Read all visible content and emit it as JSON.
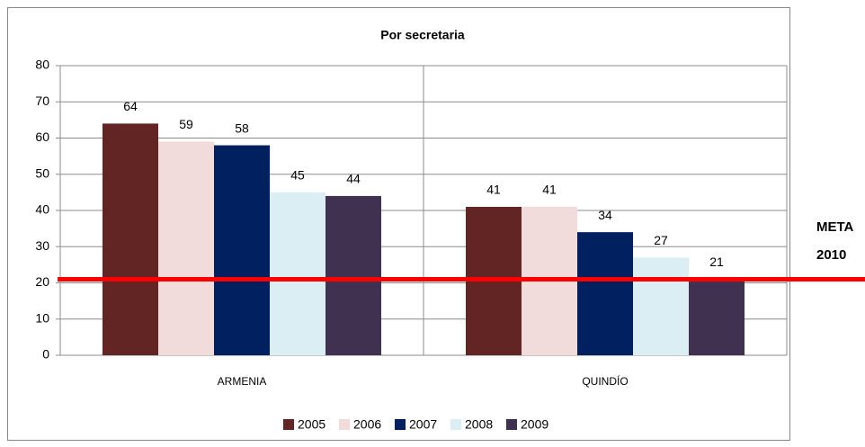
{
  "chart_data": {
    "type": "bar",
    "title": "Por secretaria",
    "categories": [
      "ARMENIA",
      "QUINDÍO"
    ],
    "series": [
      {
        "name": "2005",
        "color": "#632523",
        "values": [
          64,
          41
        ]
      },
      {
        "name": "2006",
        "color": "#f2dcdb",
        "values": [
          59,
          41
        ]
      },
      {
        "name": "2007",
        "color": "#002060",
        "values": [
          58,
          34
        ]
      },
      {
        "name": "2008",
        "color": "#dbeef4",
        "values": [
          45,
          27
        ]
      },
      {
        "name": "2009",
        "color": "#403151",
        "values": [
          44,
          21
        ]
      }
    ],
    "ylim": [
      0,
      80
    ],
    "yticks": [
      0,
      10,
      20,
      30,
      40,
      50,
      60,
      70,
      80
    ],
    "grid": true,
    "legend": "bottom",
    "reference_line": {
      "value": 21,
      "label": [
        "META",
        "2010"
      ],
      "color": "#ff0000"
    }
  }
}
